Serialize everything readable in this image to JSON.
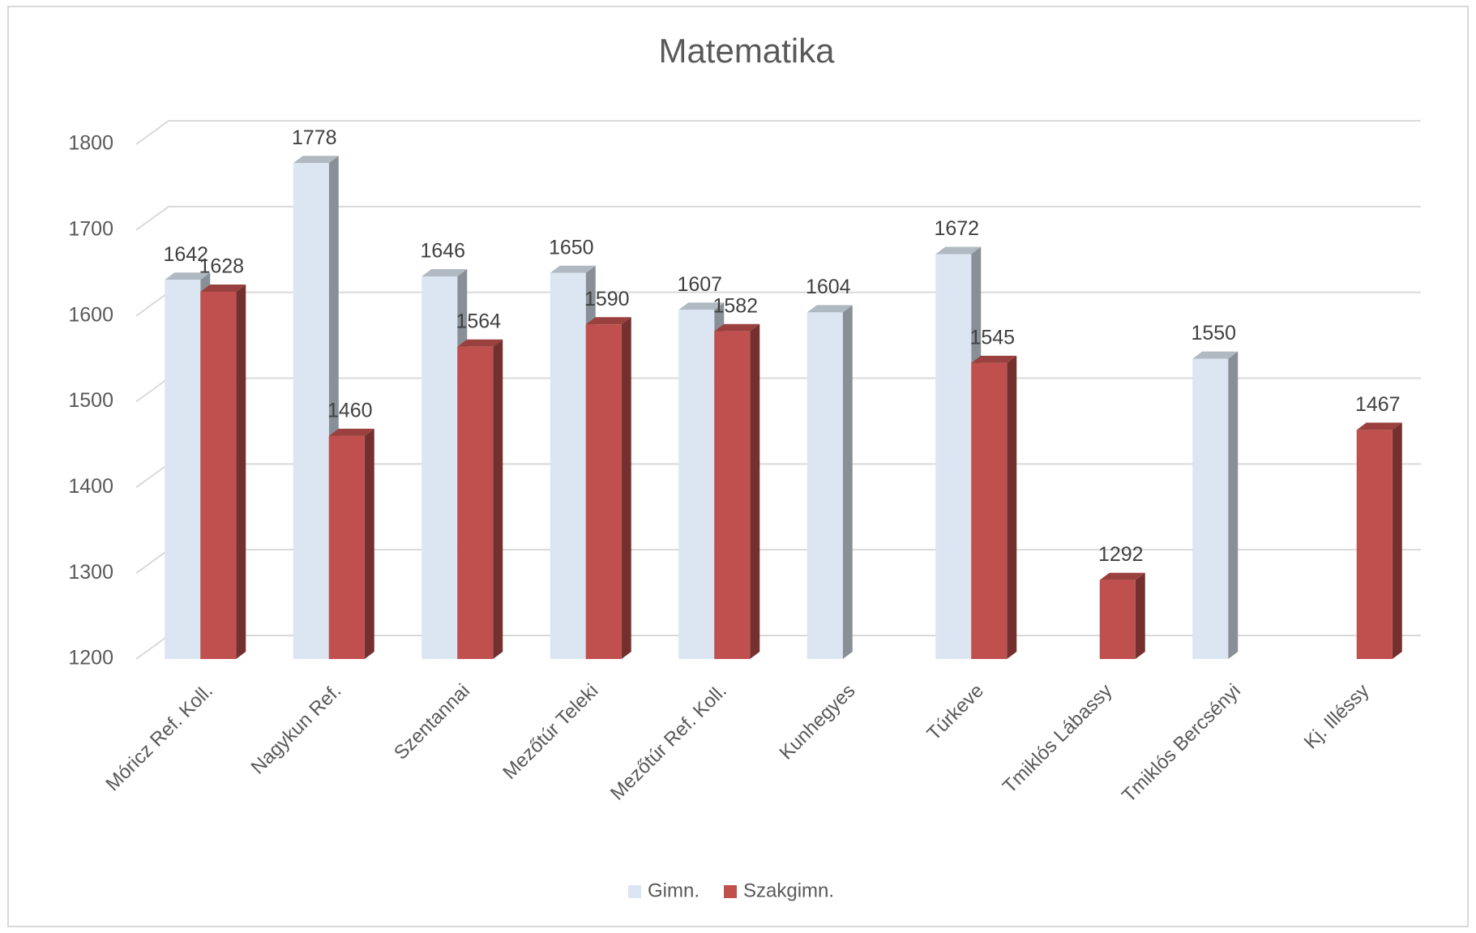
{
  "chart_data": {
    "type": "bar3d",
    "title": "Matematika",
    "categories": [
      "Móricz Ref. Koll.",
      "Nagykun Ref.",
      "Szentannai",
      "Mezőtúr Teleki",
      "Mezőtúr Ref. Koll.",
      "Kunhegyes",
      "Túrkeve",
      "Tmiklós Lábassy",
      "Tmiklós Bercsényi",
      "Kj. Illéssy"
    ],
    "series": [
      {
        "name": "Gimn.",
        "color": "#dce6f2",
        "values": [
          1642,
          1778,
          1646,
          1650,
          1607,
          1604,
          1672,
          null,
          1550,
          null
        ]
      },
      {
        "name": "Szakgimn.",
        "color": "#c0504d",
        "values": [
          1628,
          1460,
          1564,
          1590,
          1582,
          null,
          1545,
          1292,
          null,
          1467
        ]
      }
    ],
    "ylim": [
      1200,
      1800
    ],
    "yticks": [
      1200,
      1300,
      1400,
      1500,
      1600,
      1700,
      1800
    ],
    "grid": true,
    "legend": "bottom"
  }
}
